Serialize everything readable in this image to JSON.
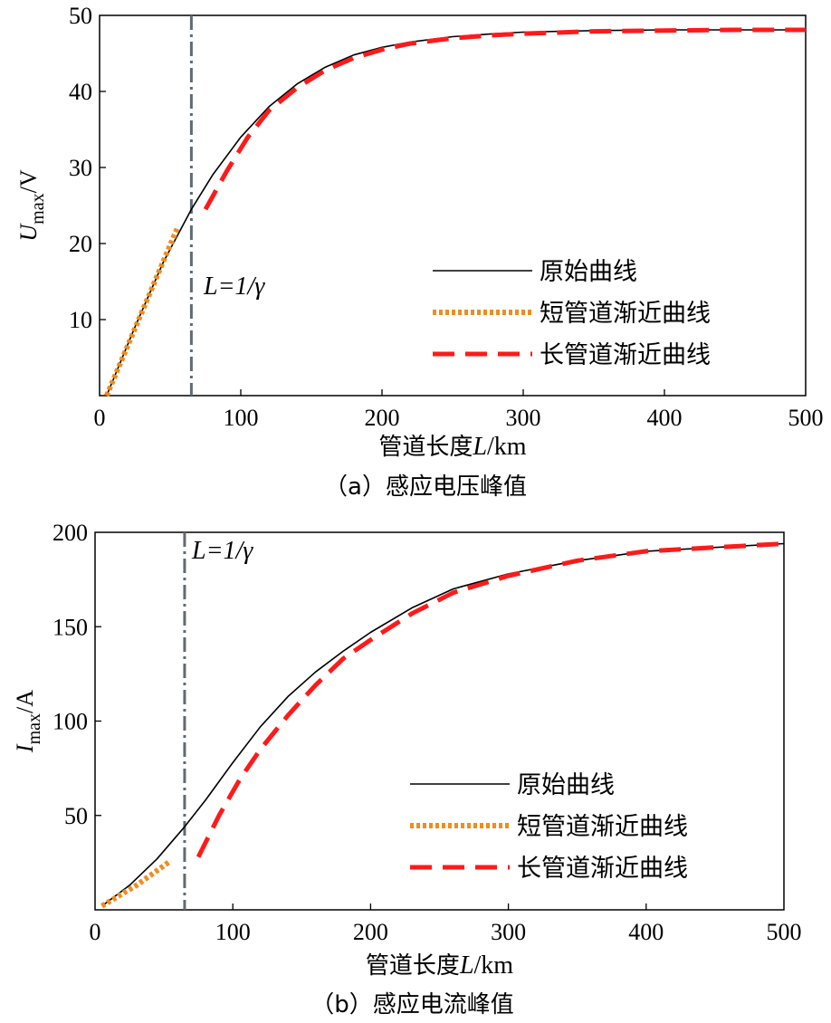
{
  "chart_data": [
    {
      "type": "line",
      "caption": "（a）感应电压峰值",
      "xlabel_prefix": "管道长度",
      "xlabel_var": "L",
      "xlabel_unit": "/km",
      "ylabel_var": "U",
      "ylabel_sub": "max",
      "ylabel_unit": "/V",
      "xlim": [
        0,
        500
      ],
      "ylim": [
        0,
        50
      ],
      "xticks": [
        "0",
        "100",
        "200",
        "300",
        "400",
        "500"
      ],
      "yticks": [
        "10",
        "20",
        "30",
        "40",
        "50"
      ],
      "annotation": "L=1/γ",
      "vline_x": 65,
      "legend_position": "bottom-right",
      "series": [
        {
          "name": "原始曲线",
          "style": "solid",
          "color": "#000000",
          "x": [
            5,
            25,
            45,
            65,
            80,
            100,
            120,
            140,
            160,
            180,
            200,
            220,
            250,
            280,
            300,
            350,
            400,
            450,
            500
          ],
          "y": [
            0,
            9,
            17.5,
            24.5,
            29,
            34,
            38,
            41,
            43.2,
            44.8,
            45.8,
            46.5,
            47.2,
            47.6,
            47.8,
            48,
            48.1,
            48.1,
            48.1
          ]
        },
        {
          "name": "短管道渐近曲线",
          "style": "dotted",
          "color": "#f08c1e",
          "x": [
            5,
            30,
            55
          ],
          "y": [
            0,
            11,
            22
          ]
        },
        {
          "name": "长管道渐近曲线",
          "style": "dashed",
          "color": "#ff1a1a",
          "x": [
            75,
            90,
            105,
            120,
            140,
            160,
            180,
            200,
            220,
            250,
            280,
            300,
            350,
            400,
            450,
            500
          ],
          "y": [
            24.5,
            29.5,
            34,
            37.5,
            40.5,
            42.8,
            44.4,
            45.5,
            46.3,
            47,
            47.4,
            47.6,
            47.9,
            48,
            48.1,
            48.1
          ]
        }
      ]
    },
    {
      "type": "line",
      "caption": "（b）感应电流峰值",
      "xlabel_prefix": "管道长度",
      "xlabel_var": "L",
      "xlabel_unit": "/km",
      "ylabel_var": "I",
      "ylabel_sub": "max",
      "ylabel_unit": "/A",
      "xlim": [
        0,
        500
      ],
      "ylim": [
        0,
        200
      ],
      "xticks": [
        "0",
        "100",
        "200",
        "300",
        "400",
        "500"
      ],
      "yticks": [
        "50",
        "100",
        "150",
        "200"
      ],
      "annotation": "L=1/γ",
      "vline_x": 65,
      "legend_position": "bottom-right",
      "series": [
        {
          "name": "原始曲线",
          "style": "solid",
          "color": "#000000",
          "x": [
            5,
            25,
            45,
            65,
            80,
            100,
            120,
            140,
            160,
            180,
            200,
            230,
            260,
            300,
            350,
            400,
            450,
            500
          ],
          "y": [
            2,
            13,
            27,
            44,
            58,
            78,
            97,
            113,
            126,
            137,
            147,
            160,
            170,
            178,
            185,
            190,
            192,
            194
          ]
        },
        {
          "name": "短管道渐近曲线",
          "style": "dotted",
          "color": "#f08c1e",
          "x": [
            5,
            30,
            55
          ],
          "y": [
            2,
            13,
            26
          ]
        },
        {
          "name": "长管道渐近曲线",
          "style": "dashed",
          "color": "#ff1a1a",
          "x": [
            75,
            90,
            105,
            120,
            140,
            160,
            180,
            200,
            230,
            260,
            300,
            350,
            400,
            450,
            500
          ],
          "y": [
            28,
            50,
            69,
            85,
            103,
            119,
            133,
            143,
            157,
            168,
            177,
            185,
            190,
            192,
            194
          ]
        }
      ]
    }
  ]
}
